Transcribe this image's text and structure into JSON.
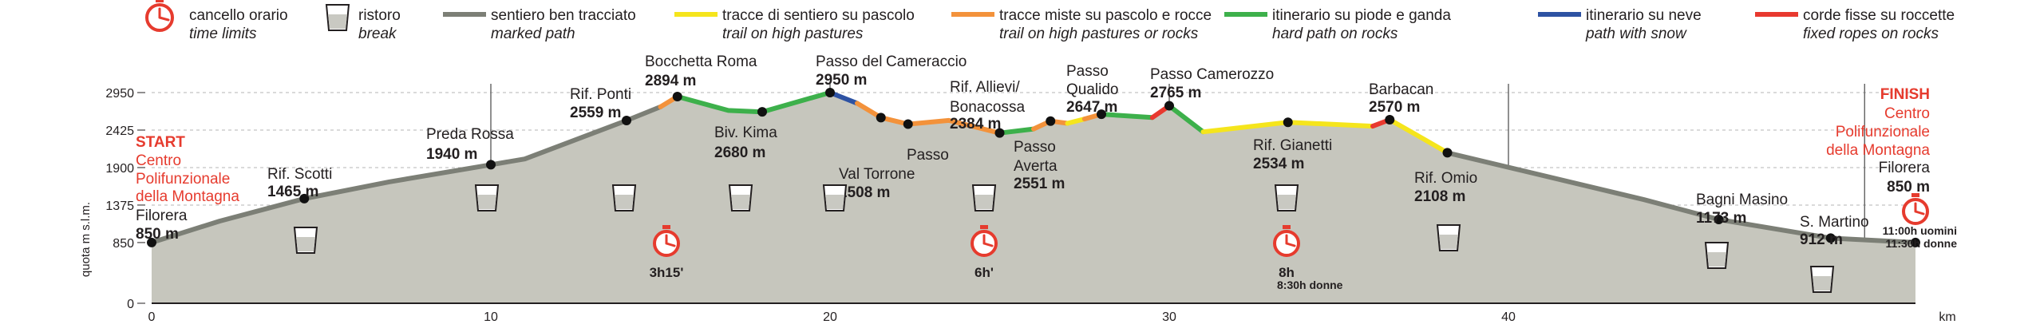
{
  "legend": [
    {
      "icon": "stopwatch-icon",
      "title": "cancello orario",
      "subtitle": "time limits"
    },
    {
      "icon": "cup-icon",
      "title": "ristoro",
      "subtitle": "break"
    },
    {
      "swatch": "#7c7f76",
      "title": "sentiero ben tracciato",
      "subtitle": "marked path"
    },
    {
      "swatch": "#f5e51c",
      "title": "tracce di sentiero su pascolo",
      "subtitle": "trail on high pastures"
    },
    {
      "swatch": "#f3923b",
      "title": "tracce miste su pascolo e rocce",
      "subtitle": "trail on high pastures or rocks"
    },
    {
      "swatch": "#3db04b",
      "title": "itinerario su piode e ganda",
      "subtitle": "hard path on rocks"
    },
    {
      "swatch": "#2d52a3",
      "title": "itinerario su neve",
      "subtitle": "path with snow"
    },
    {
      "swatch": "#e8392f",
      "title": "corde fisse su roccette",
      "subtitle": "fixed ropes on rocks"
    }
  ],
  "start": {
    "label": "START",
    "line1": "Centro",
    "line2": "Polifunzionale",
    "line3": "della Montagna",
    "place": "Filorera",
    "alt": "850 m"
  },
  "finish": {
    "label": "FINISH",
    "line1": "Centro",
    "line2": "Polifunzionale",
    "line3": "della Montagna",
    "place": "Filorera",
    "alt": "850 m",
    "time1": "11:00h uomini",
    "time2": "11:30h donne"
  },
  "waypoints": [
    {
      "name": "Rif. Scotti",
      "alt": "1465 m"
    },
    {
      "name": "Preda Rossa",
      "alt": "1940 m"
    },
    {
      "name": "Rif. Ponti",
      "alt": "2559 m"
    },
    {
      "name": "Bocchetta Roma",
      "alt": "2894 m"
    },
    {
      "name": "Biv. Kima",
      "alt": "2680 m"
    },
    {
      "name": "Passo del",
      "alt": "2950 m"
    },
    {
      "name": "Cameraccio",
      "alt": ""
    },
    {
      "name": "Passo",
      "alt": ""
    },
    {
      "name": "Val Torrone",
      "alt": "2508 m"
    },
    {
      "name": "Rif. Allievi/",
      "alt": ""
    },
    {
      "name": "Bonacossa",
      "alt": "2384 m"
    },
    {
      "name": "Passo",
      "alt": ""
    },
    {
      "name": "Averta",
      "alt": "2551 m"
    },
    {
      "name": "Passo",
      "alt": ""
    },
    {
      "name": "Qualido",
      "alt": "2647 m"
    },
    {
      "name": "Passo Camerozzo",
      "alt": "2765 m"
    },
    {
      "name": "Rif. Gianetti",
      "alt": "2534 m"
    },
    {
      "name": "Barbacan",
      "alt": "2570 m"
    },
    {
      "name": "Rif. Omio",
      "alt": "2108 m"
    },
    {
      "name": "Bagni Masino",
      "alt": "1173 m"
    },
    {
      "name": "S. Martino",
      "alt": "912 m"
    }
  ],
  "time_gates": [
    {
      "time": "3h15'",
      "note": ""
    },
    {
      "time": "6h'",
      "note": ""
    },
    {
      "time": "8h",
      "note": "8:30h donne"
    }
  ],
  "axis": {
    "ylabel": "quota m s.l.m.",
    "xlabel": "km",
    "yticks": [
      "2950",
      "2425",
      "1900",
      "1375",
      "850",
      "0"
    ],
    "xticks": [
      "0",
      "10",
      "20",
      "30",
      "40"
    ]
  },
  "chart_data": {
    "type": "area",
    "xlabel": "km",
    "ylabel": "quota m s.l.m.",
    "ylim": [
      0,
      2950
    ],
    "xlim": [
      0,
      52
    ],
    "x": [
      0,
      2,
      4.5,
      7,
      10,
      11,
      14,
      15,
      15.5,
      17,
      18,
      20,
      20.8,
      21.5,
      22.3,
      23.5,
      25,
      26,
      26.5,
      27,
      27.5,
      28,
      29.5,
      30,
      31,
      33.5,
      36,
      36.5,
      37.5,
      38.2,
      44,
      46.2,
      49.5,
      52
    ],
    "series": [
      {
        "values": [
          850,
          1150,
          1465,
          1700,
          1940,
          2020,
          2559,
          2750,
          2894,
          2700,
          2680,
          2950,
          2800,
          2600,
          2508,
          2560,
          2384,
          2440,
          2551,
          2520,
          2580,
          2647,
          2600,
          2765,
          2400,
          2534,
          2480,
          2570,
          2300,
          2108,
          1450,
          1173,
          912,
          850
        ]
      }
    ]
  }
}
